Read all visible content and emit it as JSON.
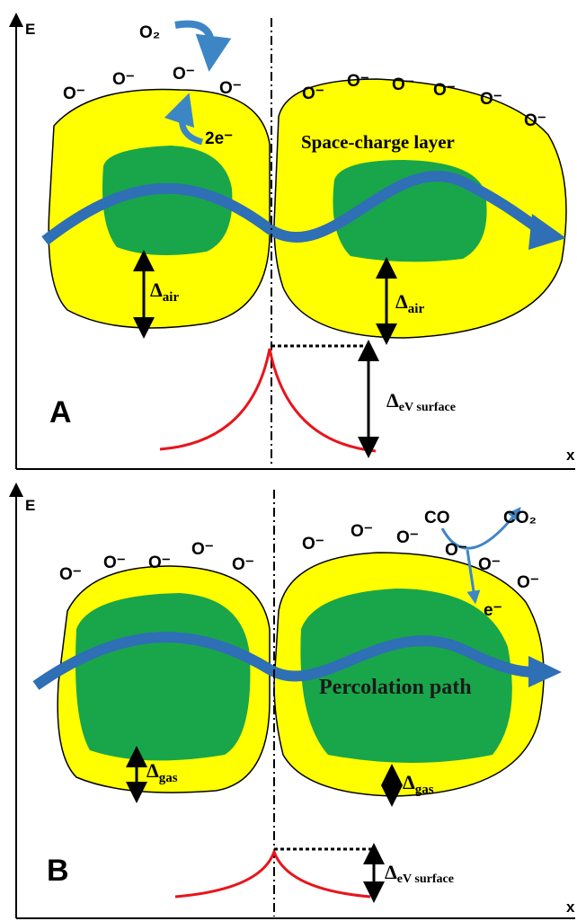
{
  "panels": [
    {
      "label": "A",
      "axis_y": "E",
      "axis_x": "x",
      "reactant": "O₂",
      "electrons": "2e⁻",
      "ions": [
        "O⁻",
        "O⁻",
        "O⁻",
        "O⁻",
        "O⁻",
        "O⁻",
        "O⁻",
        "O⁻",
        "O⁻",
        "O⁻"
      ],
      "layer_label": "Space-charge layer",
      "depletion": [
        {
          "symbol": "Δ",
          "subscript": "air"
        },
        {
          "symbol": "Δ",
          "subscript": "air"
        }
      ],
      "barrier": {
        "symbol": "Δ",
        "subscript": "eV surface"
      }
    },
    {
      "label": "B",
      "axis_y": "E",
      "axis_x": "x",
      "reactant": "CO",
      "product": "CO₂",
      "electrons": "e⁻",
      "ions": [
        "O⁻",
        "O⁻",
        "O⁻",
        "O⁻",
        "O⁻",
        "O⁻",
        "O⁻",
        "O⁻",
        "O⁻",
        "O⁻",
        "O⁻"
      ],
      "path_label": "Percolation path",
      "depletion": [
        {
          "symbol": "Δ",
          "subscript": "gas"
        },
        {
          "symbol": "Δ",
          "subscript": "gas"
        }
      ],
      "barrier": {
        "symbol": "Δ",
        "subscript": "eV surface"
      }
    }
  ]
}
